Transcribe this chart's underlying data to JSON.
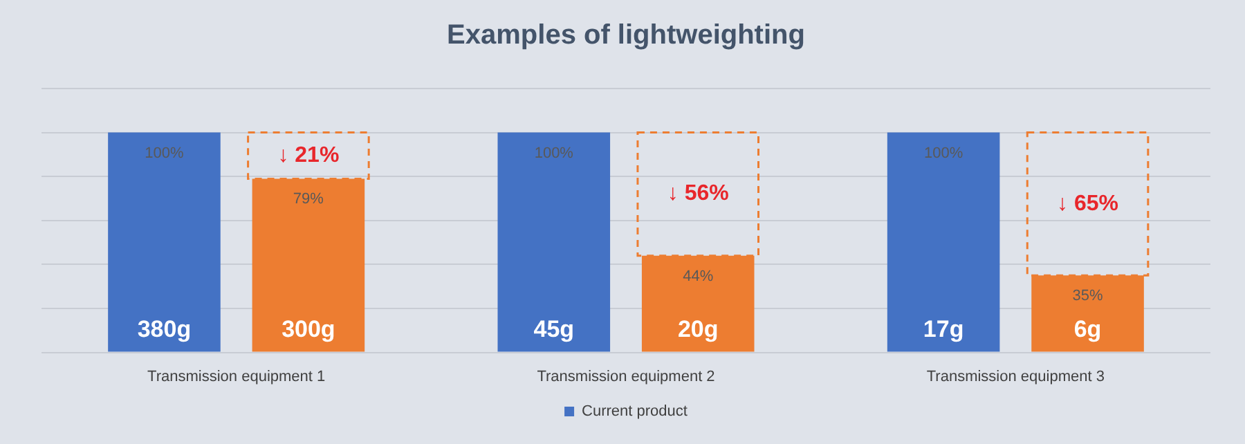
{
  "chart_data": {
    "type": "bar",
    "title": "Examples of lightweighting",
    "categories": [
      "Transmission equipment 1",
      "Transmission equipment 2",
      "Transmission equipment 3"
    ],
    "series": [
      {
        "name": "Current product",
        "color": "#4472c4",
        "values": [
          100,
          100,
          100
        ],
        "value_labels": [
          "100%",
          "100%",
          "100%"
        ]
      },
      {
        "color": "#ed7d31",
        "values": [
          79,
          44,
          35
        ],
        "value_labels": [
          "79%",
          "44%",
          "35%"
        ]
      }
    ],
    "ylim": [
      0,
      120
    ],
    "yticks": [
      {
        "value": 0,
        "label": null
      },
      {
        "value": 20,
        "label": null
      },
      {
        "value": 40,
        "label": null
      },
      {
        "value": 60,
        "label": null
      },
      {
        "value": 80,
        "label": null
      },
      {
        "value": 100,
        "label": null
      },
      {
        "value": 120,
        "label": null
      }
    ],
    "tick_labels": "x",
    "grid": "y",
    "legend": "bottom",
    "annotations": [
      "380g",
      "300g",
      "↓ 21%",
      "45g",
      "20g",
      "↓ 56%",
      "17g",
      "6g",
      "↓ 65%"
    ]
  }
}
